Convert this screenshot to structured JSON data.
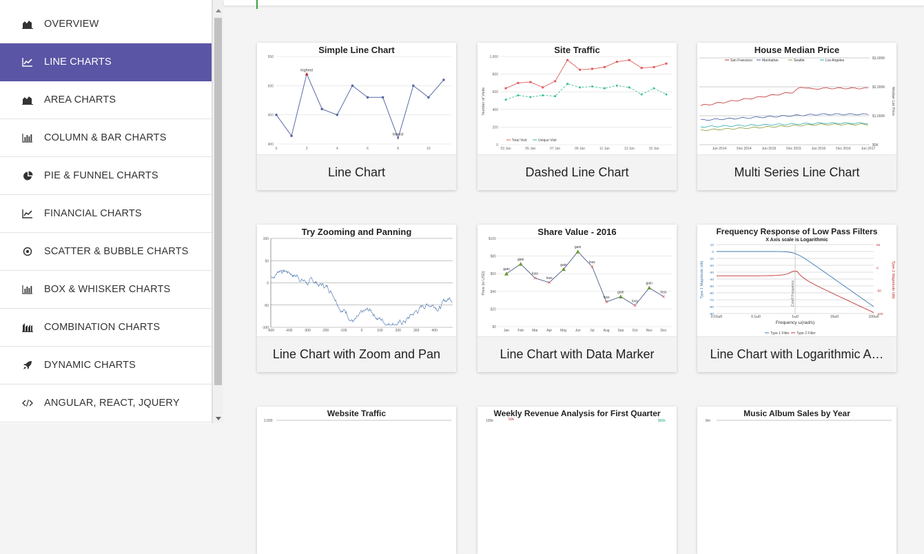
{
  "sidebar": {
    "items": [
      {
        "label": "OVERVIEW",
        "icon": "area-chart-icon"
      },
      {
        "label": "LINE CHARTS",
        "icon": "line-chart-icon",
        "active": true
      },
      {
        "label": "AREA CHARTS",
        "icon": "area-chart-icon"
      },
      {
        "label": "COLUMN & BAR CHARTS",
        "icon": "bar-chart-icon"
      },
      {
        "label": "PIE & FUNNEL CHARTS",
        "icon": "pie-chart-icon"
      },
      {
        "label": "FINANCIAL CHARTS",
        "icon": "line-chart-icon"
      },
      {
        "label": "SCATTER & BUBBLE CHARTS",
        "icon": "target-icon"
      },
      {
        "label": "BOX & WHISKER CHARTS",
        "icon": "bar-chart-icon"
      },
      {
        "label": "COMBINATION CHARTS",
        "icon": "combo-chart-icon"
      },
      {
        "label": "DYNAMIC CHARTS",
        "icon": "rocket-icon"
      },
      {
        "label": "ANGULAR, REACT, JQUERY",
        "icon": "code-icon"
      }
    ],
    "active_color": "#5b55a5"
  },
  "cards": [
    {
      "label": "Line Chart",
      "chart_title": "Simple Line Chart",
      "chart_data": {
        "type": "line",
        "title": "Simple Line Chart",
        "x": [
          0,
          1,
          2,
          3,
          4,
          5,
          6,
          7,
          8,
          9,
          10,
          11
        ],
        "values": [
          450,
          414,
          520,
          460,
          450,
          500,
          480,
          480,
          410,
          500,
          480,
          510
        ],
        "x_ticks": [
          "0",
          "2",
          "4",
          "6",
          "8",
          "10"
        ],
        "y_ticks": [
          "400",
          "450",
          "500",
          "550"
        ],
        "ylim": [
          400,
          550
        ],
        "annotations": [
          "highest",
          "lowest"
        ],
        "color": "#5a69a6"
      }
    },
    {
      "label": "Dashed Line Chart",
      "chart_title": "Site Traffic",
      "chart_data": {
        "type": "line",
        "title": "Site Traffic",
        "ylabel": "Number of Visits",
        "x_ticks": [
          "03 Jan",
          "05 Jan",
          "07 Jan",
          "09 Jan",
          "11 Jan",
          "13 Jan",
          "15 Jan"
        ],
        "y_ticks": [
          "0",
          "200",
          "400",
          "600",
          "800",
          "1,000"
        ],
        "ylim": [
          0,
          1000
        ],
        "series": [
          {
            "name": "Total Visit",
            "color": "#e05c5c",
            "values": [
              640,
              700,
              710,
              650,
              720,
              960,
              850,
              860,
              880,
              940,
              960,
              870,
              880,
              920
            ]
          },
          {
            "name": "Unique Visit",
            "color": "#3cbf8f",
            "values": [
              510,
              560,
              540,
              560,
              550,
              690,
              650,
              660,
              640,
              670,
              650,
              570,
              640,
              570
            ]
          }
        ]
      }
    },
    {
      "label": "Multi Series Line Chart",
      "chart_title": "House Median Price",
      "chart_data": {
        "type": "line",
        "title": "House Median Price",
        "ylabel": "Median List Price",
        "x_ticks": [
          "Jun 2014",
          "Dec 2014",
          "Jun 2015",
          "Dec 2015",
          "Jun 2016",
          "Dec 2016",
          "Jun 2017"
        ],
        "y_ticks": [
          "$0K",
          "$1,000K",
          "$2,000K",
          "$3,000K"
        ],
        "ylim": [
          0,
          3000
        ],
        "series": [
          {
            "name": "San Francisco",
            "color": "#c03030"
          },
          {
            "name": "Manhattan",
            "color": "#3d5a9e"
          },
          {
            "name": "Seattle",
            "color": "#8a9a30"
          },
          {
            "name": "Los Angeles",
            "color": "#2aa8b0"
          }
        ]
      }
    },
    {
      "label": "Line Chart with Zoom and Pan",
      "chart_title": "Try Zooming and Panning",
      "chart_data": {
        "type": "line",
        "title": "Try Zooming and Panning",
        "x_ticks": [
          "-500",
          "-400",
          "-300",
          "-200",
          "-100",
          "0",
          "100",
          "200",
          "300",
          "400"
        ],
        "y_ticks": [
          "-100",
          "-50",
          "0",
          "50",
          "100"
        ],
        "ylim": [
          -100,
          100
        ],
        "color": "#3d6aa8"
      }
    },
    {
      "label": "Line Chart with Data Marker",
      "chart_title": "Share Value - 2016",
      "chart_data": {
        "type": "line",
        "title": "Share Value - 2016",
        "ylabel": "Price (in USD)",
        "categories": [
          "Jan",
          "Feb",
          "Mar",
          "Apr",
          "May",
          "Jun",
          "Jul",
          "Aug",
          "Sep",
          "Oct",
          "Nov",
          "Dec"
        ],
        "values": [
          60,
          71,
          55,
          50,
          65,
          85,
          68,
          28,
          34,
          24,
          44,
          34
        ],
        "markers": [
          "gain",
          "gain",
          "loss",
          "loss",
          "gain",
          "gain",
          "loss",
          "loss",
          "gain",
          "loss",
          "gain",
          "loss"
        ],
        "y_ticks": [
          "$0",
          "$20",
          "$40",
          "$60",
          "$80",
          "$100"
        ],
        "ylim": [
          0,
          100
        ],
        "gain_color": "#6a9a30",
        "loss_color": "#e05050"
      }
    },
    {
      "label": "Line Chart with Logarithmic A…",
      "chart_title": "Frequency Response of Low Pass Filters",
      "chart_subtitle": "X Axis scale is Logarithmic",
      "chart_data": {
        "type": "line",
        "title": "Frequency Response of Low Pass Filters",
        "subtitle": "X Axis scale is Logarithmic",
        "xlabel": "Frequency ω(rad/s)",
        "ylabel": "Type 1 Magnitude (db)",
        "y2label": "Type 2 Magnitude (db)",
        "x_scale": "log",
        "x_ticks": [
          "0.01ω0",
          "0.1ω0",
          "1ω0",
          "10ω0",
          "100ω0"
        ],
        "y_ticks": [
          "-90",
          "-80",
          "-70",
          "-60",
          "-50",
          "-40",
          "-30",
          "-20",
          "-10",
          "0",
          "10"
        ],
        "y2_ticks": [
          "-100",
          "-50",
          "0",
          "50"
        ],
        "annotation": "Cutoff Frequency",
        "series": [
          {
            "name": "Type 1 Filter",
            "color": "#3d78b0"
          },
          {
            "name": "Type 2 Filter",
            "color": "#c03030"
          }
        ]
      }
    },
    {
      "label": "",
      "chart_title": "Website Traffic",
      "y_tick_top": "2,000"
    },
    {
      "label": "",
      "chart_title": "Weekly Revenue Analysis for First Quarter",
      "y_tick_top": "100k",
      "y_tick_second": "50k",
      "y2_tick_top": "$60k"
    },
    {
      "label": "",
      "chart_title": "Music Album Sales by Year",
      "y_tick_top": "8m"
    }
  ]
}
